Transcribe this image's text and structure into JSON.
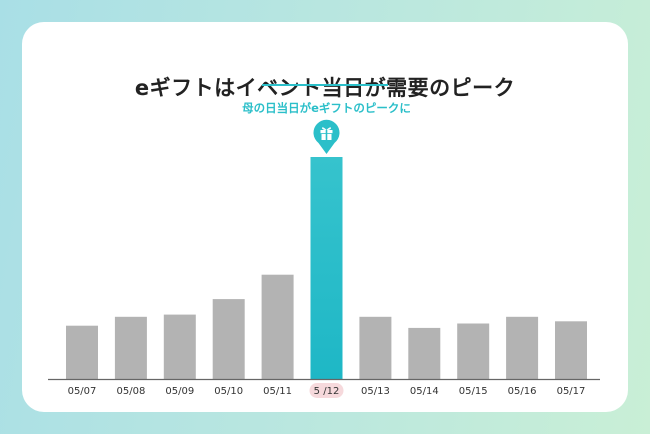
{
  "chart_data": {
    "type": "bar",
    "title": "eギフトはイベント当日が需要のピーク",
    "annotation": {
      "text": "母の日当日がeギフトのピークに",
      "category_index": 5,
      "icon": "gift-icon"
    },
    "categories": [
      "05/07",
      "05/08",
      "05/09",
      "05/10",
      "05/11",
      "5 /12",
      "05/13",
      "05/14",
      "05/15",
      "05/16",
      "05/17"
    ],
    "values": [
      24,
      28,
      29,
      36,
      47,
      100,
      28,
      23,
      25,
      28,
      26
    ],
    "highlight_index": 5,
    "ylim": [
      0,
      100
    ],
    "colors": {
      "bar": "#b3b3b3",
      "highlight_top": "#36c3cd",
      "highlight_bottom": "#1eb7c6",
      "accent": "#2bbfc9",
      "highlight_label_bg": "#f6d9dc"
    }
  }
}
